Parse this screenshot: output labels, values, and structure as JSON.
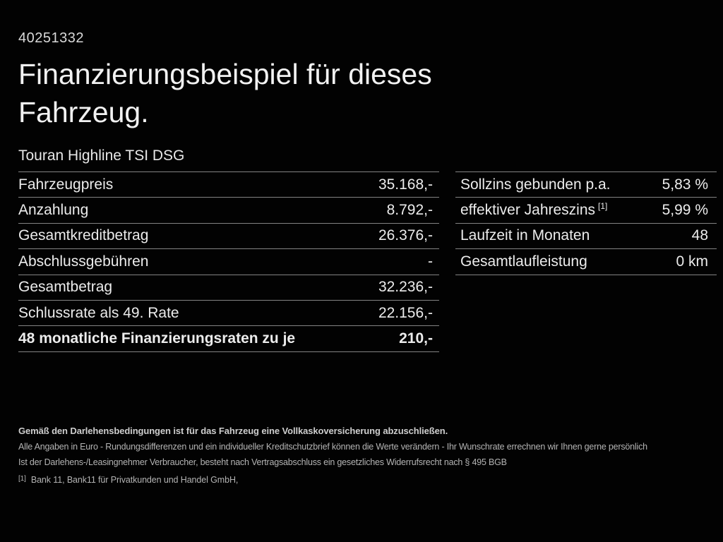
{
  "page": {
    "id_number": "40251332",
    "title_line1": "Finanzierungsbeispiel für dieses",
    "title_line2": "Fahrzeug.",
    "vehicle_name": "Touran Highline TSI DSG"
  },
  "left_table": {
    "rows": [
      {
        "label": "Fahrzeugpreis",
        "value": "35.168,-"
      },
      {
        "label": "Anzahlung",
        "value": "8.792,-"
      },
      {
        "label": "Gesamtkreditbetrag",
        "value": "26.376,-"
      },
      {
        "label": "Abschlussgebühren",
        "value": "-"
      },
      {
        "label": "Gesamtbetrag",
        "value": "32.236,-"
      },
      {
        "label": "Schlussrate als 49. Rate",
        "value": "22.156,-"
      },
      {
        "label": "48 monatliche Finanzierungsraten zu je",
        "value": "210,-"
      }
    ]
  },
  "right_table": {
    "rows": [
      {
        "label": "Sollzins gebunden p.a.",
        "value": "5,83 %"
      },
      {
        "label": "effektiver Jahreszins",
        "label_sup": "[1]",
        "value": "5,99 %"
      },
      {
        "label": "Laufzeit in Monaten",
        "value": "48"
      },
      {
        "label": "Gesamtlaufleistung",
        "value": "0 km"
      }
    ]
  },
  "footnotes": {
    "insurance_note": "Gemäß den Darlehensbedingungen ist für das Fahrzeug eine Vollkaskoversicherung abzuschließen.",
    "disclaimer_line1": "Alle Angaben in Euro - Rundungsdifferenzen und ein individueller Kreditschutzbrief können die Werte verändern - Ihr Wunschrate errechnen wir Ihnen gerne persönlich",
    "disclaimer_line2": "Ist der Darlehens-/Leasingnehmer Verbraucher, besteht nach Vertragsabschluss ein gesetzliches Widerrufsrecht nach § 495 BGB",
    "source_marker": "[1]",
    "source_text": "Bank 11, Bank11 für Privatkunden und Handel GmbH,"
  },
  "colors": {
    "background": "#020202",
    "text_primary": "#ececec",
    "divider": "#838383",
    "footnote_text": "#b4b4b4"
  }
}
